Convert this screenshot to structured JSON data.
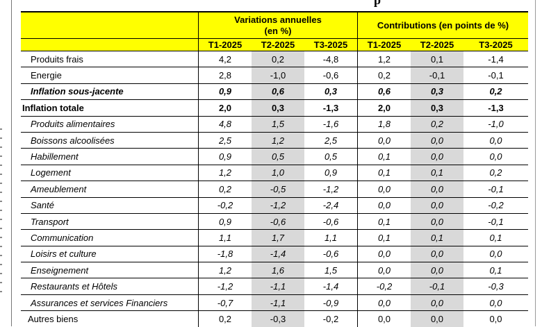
{
  "title_fragment": "p",
  "header": {
    "group1": "Variations annuelles",
    "group1_unit": "(en %)",
    "group2": "Contributions (en points de %)",
    "periods": [
      "T1-2025",
      "T2-2025",
      "T3-2025",
      "T1-2025",
      "T2-2025",
      "T3-2025"
    ]
  },
  "rows": [
    {
      "label": "Produits frais",
      "style": "normal",
      "values": [
        "4,2",
        "0,2",
        "-4,8",
        "1,2",
        "0,1",
        "-1,4"
      ]
    },
    {
      "label": "Energie",
      "style": "normal",
      "values": [
        "2,8",
        "-1,0",
        "-0,6",
        "0,2",
        "-0,1",
        "-0,1"
      ]
    },
    {
      "label": "Inflation sous-jacente",
      "style": "bold-italic",
      "values": [
        "0,9",
        "0,6",
        "0,3",
        "0,6",
        "0,3",
        "0,2"
      ]
    },
    {
      "label": "Inflation totale",
      "style": "bold",
      "values": [
        "2,0",
        "0,3",
        "-1,3",
        "2,0",
        "0,3",
        "-1,3"
      ]
    },
    {
      "label": "Produits alimentaires",
      "style": "italic",
      "values": [
        "4,8",
        "1,5",
        "-1,6",
        "1,8",
        "0,2",
        "-1,0"
      ]
    },
    {
      "label": "Boissons alcoolisées",
      "style": "italic",
      "values": [
        "2,5",
        "1,2",
        "2,5",
        "0,0",
        "0,0",
        "0,0"
      ]
    },
    {
      "label": "Habillement",
      "style": "italic",
      "values": [
        "0,9",
        "0,5",
        "0,5",
        "0,1",
        "0,0",
        "0,0"
      ]
    },
    {
      "label": "Logement",
      "style": "italic",
      "values": [
        "1,2",
        "1,0",
        "0,9",
        "0,1",
        "0,1",
        "0,2"
      ]
    },
    {
      "label": "Ameublement",
      "style": "italic",
      "values": [
        "0,2",
        "-0,5",
        "-1,2",
        "0,0",
        "0,0",
        "-0,1"
      ]
    },
    {
      "label": "Santé",
      "style": "italic",
      "values": [
        "-0,2",
        "-1,2",
        "-2,4",
        "0,0",
        "0,0",
        "-0,2"
      ]
    },
    {
      "label": "Transport",
      "style": "italic",
      "values": [
        "0,9",
        "-0,6",
        "-0,6",
        "0,1",
        "0,0",
        "-0,1"
      ]
    },
    {
      "label": "Communication",
      "style": "italic",
      "values": [
        "1,1",
        "1,7",
        "1,1",
        "0,1",
        "0,1",
        "0,1"
      ]
    },
    {
      "label": "Loisirs et culture",
      "style": "italic",
      "values": [
        "-1,8",
        "-1,4",
        "-0,6",
        "0,0",
        "0,0",
        "0,0"
      ]
    },
    {
      "label": "Enseignement",
      "style": "italic",
      "values": [
        "1,2",
        "1,6",
        "1,5",
        "0,0",
        "0,0",
        "0,1"
      ]
    },
    {
      "label": "Restaurants et Hôtels",
      "style": "italic",
      "values": [
        "-1,2",
        "-1,1",
        "-1,4",
        "-0,2",
        "-0,1",
        "-0,3"
      ]
    },
    {
      "label": "Assurances et services Financiers",
      "style": "italic",
      "values": [
        "-0,7",
        "-1,1",
        "-0,9",
        "0,0",
        "0,0",
        "0,0"
      ]
    },
    {
      "label": "Autres biens",
      "style": "normal",
      "values": [
        "0,2",
        "-0,3",
        "-0,2",
        "0,0",
        "0,0",
        "0,0"
      ]
    }
  ],
  "colors": {
    "header_bg": "#ffff00",
    "highlight_column": "#d9d9d9"
  }
}
